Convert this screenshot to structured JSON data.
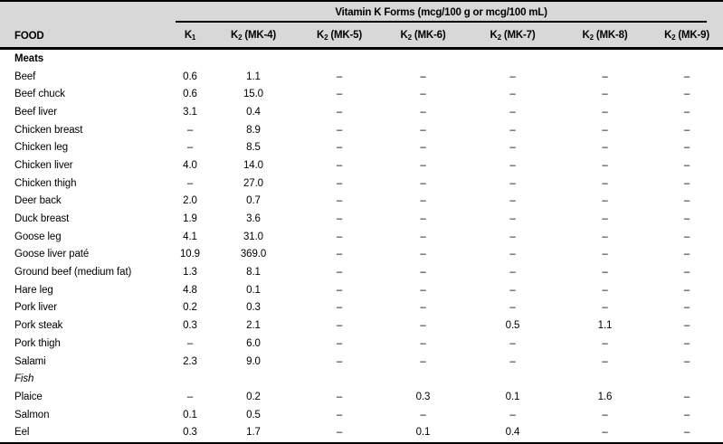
{
  "page": {
    "group_header": "Vitamin K Forms (mcg/100 g or mcg/100 mL)",
    "columns": [
      {
        "key": "food",
        "label": "FOOD"
      },
      {
        "key": "k1",
        "base": "K",
        "sub": "1",
        "rest": ""
      },
      {
        "key": "k2-mk4",
        "base": "K",
        "sub": "2",
        "rest": " (MK-4)"
      },
      {
        "key": "k2-mk5",
        "base": "K",
        "sub": "2",
        "rest": " (MK-5)"
      },
      {
        "key": "k2-mk6",
        "base": "K",
        "sub": "2",
        "rest": " (MK-6)"
      },
      {
        "key": "k2-mk7",
        "base": "K",
        "sub": "2",
        "rest": " (MK-7)"
      },
      {
        "key": "k2-mk8",
        "base": "K",
        "sub": "2",
        "rest": " (MK-8)"
      },
      {
        "key": "k2-mk9",
        "base": "K",
        "sub": "2",
        "rest": " (MK-9)"
      }
    ],
    "sections": [
      {
        "label": "Meats",
        "style": "bold",
        "rows": [
          [
            "Beef",
            "0.6",
            "1.1",
            "–",
            "–",
            "–",
            "–",
            "–"
          ],
          [
            "Beef chuck",
            "0.6",
            "15.0",
            "–",
            "–",
            "–",
            "–",
            "–"
          ],
          [
            "Beef liver",
            "3.1",
            "0.4",
            "–",
            "–",
            "–",
            "–",
            "–"
          ],
          [
            "Chicken breast",
            "–",
            "8.9",
            "–",
            "–",
            "–",
            "–",
            "–"
          ],
          [
            "Chicken leg",
            "–",
            "8.5",
            "–",
            "–",
            "–",
            "–",
            "–"
          ],
          [
            "Chicken liver",
            "4.0",
            "14.0",
            "–",
            "–",
            "–",
            "–",
            "–"
          ],
          [
            "Chicken thigh",
            "–",
            "27.0",
            "–",
            "–",
            "–",
            "–",
            "–"
          ],
          [
            "Deer back",
            "2.0",
            "0.7",
            "–",
            "–",
            "–",
            "–",
            "–"
          ],
          [
            "Duck breast",
            "1.9",
            "3.6",
            "–",
            "–",
            "–",
            "–",
            "–"
          ],
          [
            "Goose leg",
            "4.1",
            "31.0",
            "–",
            "–",
            "–",
            "–",
            "–"
          ],
          [
            "Goose liver paté",
            "10.9",
            "369.0",
            "–",
            "–",
            "–",
            "–",
            "–"
          ],
          [
            "Ground beef (medium fat)",
            "1.3",
            "8.1",
            "–",
            "–",
            "–",
            "–",
            "–"
          ],
          [
            "Hare leg",
            "4.8",
            "0.1",
            "–",
            "–",
            "–",
            "–",
            "–"
          ],
          [
            "Pork liver",
            "0.2",
            "0.3",
            "–",
            "–",
            "–",
            "–",
            "–"
          ],
          [
            "Pork steak",
            "0.3",
            "2.1",
            "–",
            "–",
            "0.5",
            "1.1",
            "–"
          ],
          [
            "Pork thigh",
            "–",
            "6.0",
            "–",
            "–",
            "–",
            "–",
            "–"
          ],
          [
            "Salami",
            "2.3",
            "9.0",
            "–",
            "–",
            "–",
            "–",
            "–"
          ]
        ]
      },
      {
        "label": "Fish",
        "style": "italic",
        "rows": [
          [
            "Plaice",
            "–",
            "0.2",
            "–",
            "0.3",
            "0.1",
            "1.6",
            "–"
          ],
          [
            "Salmon",
            "0.1",
            "0.5",
            "–",
            "–",
            "–",
            "–",
            "–"
          ],
          [
            "Eel",
            "0.3",
            "1.7",
            "–",
            "0.1",
            "0.4",
            "–",
            "–"
          ]
        ]
      }
    ],
    "colors": {
      "header_bg": "#d8d8d8",
      "rule": "#000000",
      "text": "#000000"
    }
  }
}
